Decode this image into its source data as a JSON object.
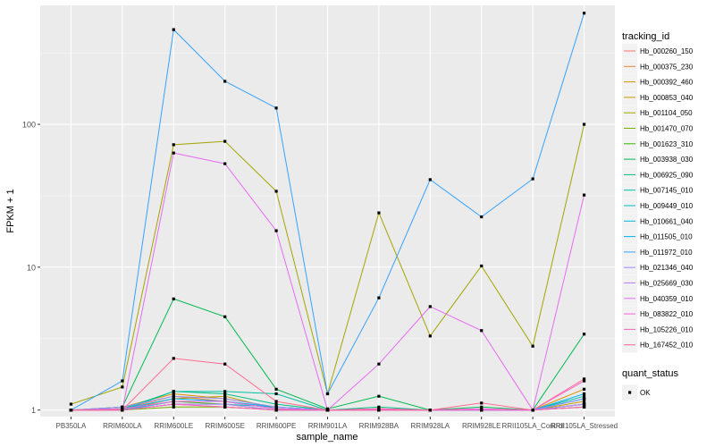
{
  "chart_data": {
    "type": "line",
    "ylabel": "FPKM + 1",
    "xlabel": "sample_name",
    "y_scale": "log10",
    "y_ticks": [
      1,
      10,
      100
    ],
    "y_tick_labels": [
      "1",
      "10",
      "100"
    ],
    "ylim": [
      0.9,
      680
    ],
    "grid": true,
    "legend_placement": "right",
    "categories": [
      "PB350LA",
      "RRIM600LA",
      "RRIM600LE",
      "RRIM600SE",
      "RRIM600PE",
      "RRIM901LA",
      "RRIM928BA",
      "RRIM928LA",
      "RRIM928LE",
      "RRII105LA_Control",
      "RRII105LA_Stressed"
    ],
    "legend_title": "tracking_id",
    "series": [
      {
        "name": "Hb_000260_150",
        "color": "#F8766D",
        "values": [
          1.0,
          1.0,
          1.1,
          1.05,
          1.0,
          1.0,
          1.0,
          1.0,
          1.0,
          1.0,
          1.05
        ]
      },
      {
        "name": "Hb_000375_230",
        "color": "#EA8331",
        "values": [
          1.0,
          1.02,
          1.25,
          1.15,
          1.02,
          1.0,
          1.0,
          1.0,
          1.0,
          1.0,
          1.1
        ]
      },
      {
        "name": "Hb_000392_460",
        "color": "#D89000",
        "values": [
          1.0,
          1.05,
          1.3,
          1.2,
          1.05,
          1.0,
          1.02,
          1.0,
          1.0,
          1.0,
          1.4
        ]
      },
      {
        "name": "Hb_000853_040",
        "color": "#C09B00",
        "values": [
          1.0,
          1.0,
          1.2,
          1.25,
          1.02,
          1.0,
          1.02,
          1.0,
          1.0,
          1.0,
          1.15
        ]
      },
      {
        "name": "Hb_001104_050",
        "color": "#A3A500",
        "values": [
          1.1,
          1.45,
          72.0,
          76.0,
          34.0,
          1.3,
          24.0,
          3.3,
          10.2,
          2.8,
          100.0
        ]
      },
      {
        "name": "Hb_001470_070",
        "color": "#7CAE00",
        "values": [
          1.0,
          1.0,
          1.05,
          1.05,
          1.0,
          1.0,
          1.0,
          1.0,
          1.0,
          1.0,
          1.05
        ]
      },
      {
        "name": "Hb_001623_310",
        "color": "#39B600",
        "values": [
          1.0,
          1.0,
          1.15,
          1.1,
          1.0,
          1.0,
          1.0,
          1.0,
          1.0,
          1.0,
          1.1
        ]
      },
      {
        "name": "Hb_003938_030",
        "color": "#00BB4E",
        "values": [
          1.0,
          1.05,
          6.0,
          4.5,
          1.4,
          1.02,
          1.25,
          1.0,
          1.05,
          1.0,
          3.4
        ]
      },
      {
        "name": "Hb_006925_090",
        "color": "#00BF7D",
        "values": [
          1.0,
          1.02,
          1.35,
          1.3,
          1.1,
          1.0,
          1.05,
          1.0,
          1.0,
          1.0,
          1.2
        ]
      },
      {
        "name": "Hb_007145_010",
        "color": "#00C1A3",
        "values": [
          1.0,
          1.0,
          1.35,
          1.35,
          1.3,
          1.0,
          1.0,
          1.0,
          1.0,
          1.0,
          1.25
        ]
      },
      {
        "name": "Hb_009449_010",
        "color": "#00BFC4",
        "values": [
          1.0,
          1.0,
          1.1,
          1.1,
          1.05,
          1.0,
          1.0,
          1.0,
          1.0,
          1.0,
          1.1
        ]
      },
      {
        "name": "Hb_010661_040",
        "color": "#00BAE0",
        "values": [
          1.0,
          1.0,
          1.15,
          1.15,
          1.05,
          1.0,
          1.0,
          1.0,
          1.0,
          1.0,
          1.2
        ]
      },
      {
        "name": "Hb_011505_010",
        "color": "#00B0F6",
        "values": [
          1.0,
          1.02,
          1.2,
          1.15,
          1.02,
          1.0,
          1.0,
          1.0,
          1.0,
          1.0,
          1.3
        ]
      },
      {
        "name": "Hb_011972_010",
        "color": "#35A2FF",
        "values": [
          1.0,
          1.6,
          460.0,
          200.0,
          130.0,
          1.3,
          6.1,
          41.0,
          22.5,
          41.5,
          600.0
        ]
      },
      {
        "name": "Hb_021346_040",
        "color": "#9590FF",
        "values": [
          1.0,
          1.05,
          1.25,
          1.2,
          1.05,
          1.0,
          1.0,
          1.0,
          1.0,
          1.0,
          1.2
        ]
      },
      {
        "name": "Hb_025669_030",
        "color": "#C77CFF",
        "values": [
          1.0,
          1.0,
          1.1,
          1.1,
          1.0,
          1.0,
          1.0,
          1.0,
          1.0,
          1.0,
          1.1
        ]
      },
      {
        "name": "Hb_040359_010",
        "color": "#E76BF3",
        "values": [
          1.0,
          1.0,
          63.0,
          53.0,
          18.0,
          1.0,
          2.1,
          5.3,
          3.6,
          1.0,
          32.0
        ]
      },
      {
        "name": "Hb_083822_010",
        "color": "#FA62DB",
        "values": [
          1.0,
          1.02,
          1.15,
          1.15,
          1.02,
          1.0,
          1.02,
          1.0,
          1.02,
          1.0,
          1.6
        ]
      },
      {
        "name": "Hb_105226_010",
        "color": "#FF62BC",
        "values": [
          1.0,
          1.0,
          1.1,
          1.05,
          1.0,
          1.0,
          1.0,
          1.0,
          1.0,
          1.0,
          1.05
        ]
      },
      {
        "name": "Hb_167452_010",
        "color": "#FF6C91",
        "values": [
          1.0,
          1.0,
          2.3,
          2.1,
          1.15,
          1.0,
          1.0,
          1.0,
          1.12,
          1.0,
          1.65
        ]
      }
    ],
    "shape_legend": {
      "title": "quant_status",
      "items": [
        "OK"
      ]
    }
  }
}
